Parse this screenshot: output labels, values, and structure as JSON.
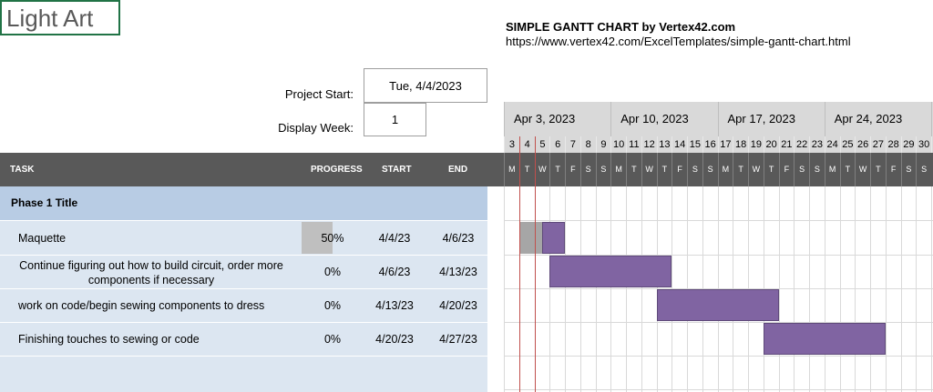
{
  "sheet": {
    "cell_title": "Light Art",
    "gantt_title": "SIMPLE GANTT CHART by Vertex42.com",
    "gantt_link": "https://www.vertex42.com/ExcelTemplates/simple-gantt-chart.html"
  },
  "settings": {
    "project_start_label": "Project Start:",
    "project_start_value": "Tue, 4/4/2023",
    "display_week_label": "Display Week:",
    "display_week_value": "1"
  },
  "columns": {
    "task": "TASK",
    "progress": "PROGRESS",
    "start": "START",
    "end": "END"
  },
  "timeline": {
    "weeks": [
      "Apr 3, 2023",
      "Apr 10, 2023",
      "Apr 17, 2023",
      "Apr 24, 2023"
    ],
    "day_numbers": [
      "3",
      "4",
      "5",
      "6",
      "7",
      "8",
      "9",
      "10",
      "11",
      "12",
      "13",
      "14",
      "15",
      "16",
      "17",
      "18",
      "19",
      "20",
      "21",
      "22",
      "23",
      "24",
      "25",
      "26",
      "27",
      "28",
      "29",
      "30"
    ],
    "day_letters": [
      "M",
      "T",
      "W",
      "T",
      "F",
      "S",
      "S",
      "M",
      "T",
      "W",
      "T",
      "F",
      "S",
      "S",
      "M",
      "T",
      "W",
      "T",
      "F",
      "S",
      "S",
      "M",
      "T",
      "W",
      "T",
      "F",
      "S",
      "S"
    ]
  },
  "phase": {
    "title": "Phase 1 Title"
  },
  "tasks": [
    {
      "name": "Maquette",
      "progress": "50%",
      "start": "4/4/23",
      "end": "4/6/23",
      "start_day": 1,
      "days": 3,
      "done_fraction": 0.5
    },
    {
      "name_line1": "Continue figuring out how to build circuit, order more",
      "name_line2": "components if necessary",
      "progress": "0%",
      "start": "4/6/23",
      "end": "4/13/23",
      "start_day": 3,
      "days": 8,
      "done_fraction": 0
    },
    {
      "name": "work on code/begin sewing components to dress",
      "progress": "0%",
      "start": "4/13/23",
      "end": "4/20/23",
      "start_day": 10,
      "days": 8,
      "done_fraction": 0
    },
    {
      "name": "Finishing touches to sewing or code",
      "progress": "0%",
      "start": "4/20/23",
      "end": "4/27/23",
      "start_day": 17,
      "days": 8,
      "done_fraction": 0
    }
  ],
  "colors": {
    "bar": "#8064a2",
    "done": "#a6a6a6",
    "today": "#c0504d",
    "header": "#595959",
    "phase": "#b8cce4",
    "rows": "#dce6f1"
  }
}
